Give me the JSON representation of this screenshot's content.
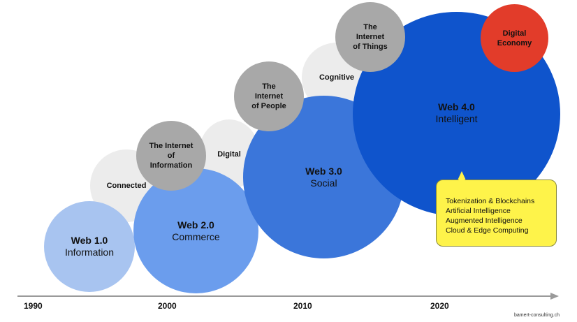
{
  "bubbles": {
    "connected": "Connected",
    "digital": "Digital",
    "cognitive": "Cognitive",
    "internet_of_information": "The Internet\nof\nInformation",
    "internet_of_people": "The\nInternet\nof People",
    "internet_of_things": "The\nInternet\nof Things",
    "digital_economy": "Digital\nEconomy"
  },
  "webs": {
    "web1": {
      "title": "Web 1.0",
      "subtitle": "Information"
    },
    "web2": {
      "title": "Web 2.0",
      "subtitle": "Commerce"
    },
    "web3": {
      "title": "Web 3.0",
      "subtitle": "Social"
    },
    "web4": {
      "title": "Web 4.0",
      "subtitle": "Intelligent"
    }
  },
  "callout": {
    "lines": [
      "Tokenization & Blockchains",
      "Artificial Intelligence",
      "Augmented Intelligence",
      "Cloud & Edge Computing"
    ]
  },
  "timeline": {
    "years": [
      "1990",
      "2000",
      "2010",
      "2020"
    ]
  },
  "credit": "bamert-consulting.ch",
  "colors": {
    "web1": "#a8c4f0",
    "web2": "#6b9ded",
    "web3": "#3b76da",
    "web4": "#0f54cc",
    "digital_economy": "#e23c2a",
    "callout": "#fef34a",
    "gray_bubble": "#a8a8a8",
    "light_bubble": "#ececec"
  }
}
